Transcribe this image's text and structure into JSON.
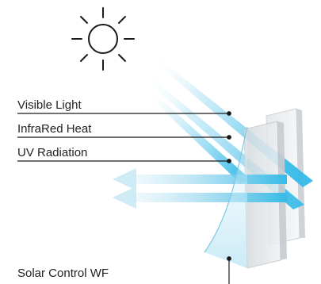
{
  "labels": {
    "visible_light": "Visible Light",
    "infrared_heat": "InfraRed Heat",
    "uv_radiation": "UV Radiation",
    "product": "Solar Control WF"
  },
  "colors": {
    "beam": "#4ec3ea",
    "glass_face": "#dfe3e6",
    "glass_edge": "#c9cdd1",
    "coating": "#bfe6f3",
    "line": "#1a1a1a"
  },
  "icons": {
    "sun": "sun-icon"
  }
}
